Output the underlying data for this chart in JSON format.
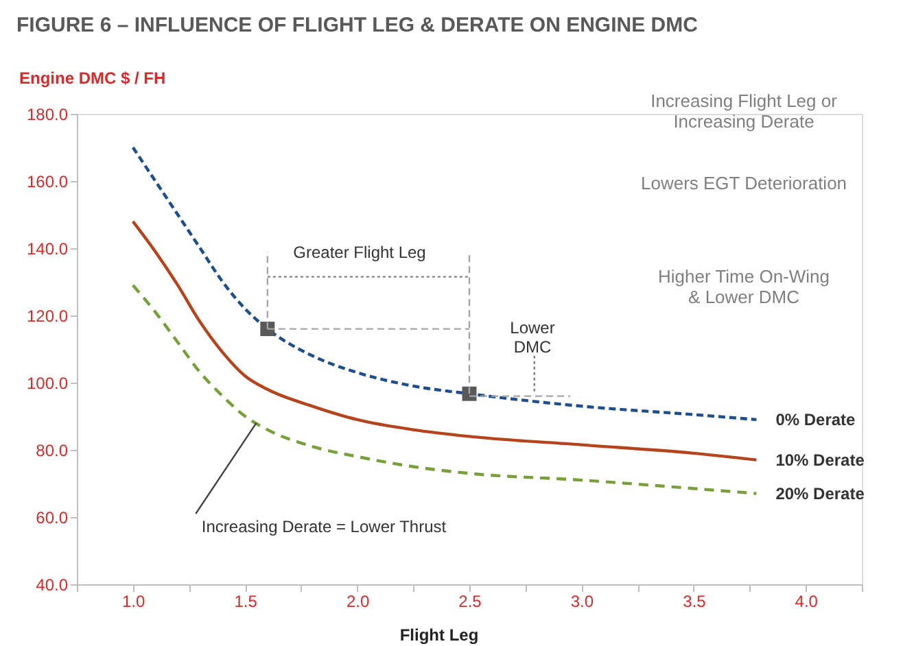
{
  "chart_data": {
    "type": "line",
    "title": "FIGURE 6 – INFLUENCE OF FLIGHT LEG & DERATE ON ENGINE DMC",
    "xlabel": "Flight Leg",
    "ylabel": "Engine  DMC $ / FH",
    "xlim": [
      0.75,
      4.25
    ],
    "xticks": [
      {
        "value": 0.75,
        "label": null
      },
      {
        "value": 1,
        "label": "1.0"
      },
      {
        "value": 1.25,
        "label": null
      },
      {
        "value": 1.5,
        "label": "1.5"
      },
      {
        "value": 1.75,
        "label": null
      },
      {
        "value": 2,
        "label": "2.0"
      },
      {
        "value": 2.25,
        "label": null
      },
      {
        "value": 2.5,
        "label": "2.5"
      },
      {
        "value": 2.75,
        "label": null
      },
      {
        "value": 3,
        "label": "3.0"
      },
      {
        "value": 3.25,
        "label": null
      },
      {
        "value": 3.5,
        "label": "3.5"
      },
      {
        "value": 3.75,
        "label": null
      },
      {
        "value": 4,
        "label": "4.0"
      },
      {
        "value": 4.25,
        "label": null
      }
    ],
    "ylim": [
      40,
      180
    ],
    "yticks": [
      {
        "value": 40,
        "label": "40.0"
      },
      {
        "value": 60,
        "label": "60.0"
      },
      {
        "value": 80,
        "label": "80.0"
      },
      {
        "value": 100,
        "label": "100.0"
      },
      {
        "value": 120,
        "label": "120.0"
      },
      {
        "value": 140,
        "label": "140.0"
      },
      {
        "value": 160,
        "label": "160.0"
      },
      {
        "value": 180,
        "label": "180.0"
      }
    ],
    "grid": false,
    "series": [
      {
        "name": "0% Derate",
        "color": "#1f4e8c",
        "line_style": "dashed",
        "x": [
          1.0,
          1.1,
          1.2,
          1.3,
          1.4,
          1.5,
          1.6,
          1.8,
          2.0,
          2.25,
          2.5,
          3.0,
          3.5,
          3.78
        ],
        "values": [
          170,
          160,
          150,
          140,
          130,
          122,
          116,
          108,
          103,
          99,
          96.7,
          93,
          90.5,
          89
        ]
      },
      {
        "name": "10% Derate",
        "color": "#b5441c",
        "line_style": "solid",
        "x": [
          1.0,
          1.1,
          1.2,
          1.3,
          1.4,
          1.5,
          1.6,
          1.8,
          2.0,
          2.25,
          2.5,
          3.0,
          3.5,
          3.78
        ],
        "values": [
          148,
          139,
          129,
          118,
          109,
          102,
          98,
          93,
          89,
          86,
          84,
          81.5,
          79,
          77
        ]
      },
      {
        "name": "20% Derate",
        "color": "#77a03a",
        "line_style": "dashed",
        "x": [
          1.0,
          1.1,
          1.2,
          1.3,
          1.4,
          1.5,
          1.6,
          1.8,
          2.0,
          2.25,
          2.5,
          3.0,
          3.5,
          3.78
        ],
        "values": [
          129,
          121,
          112,
          103,
          96,
          90,
          86,
          81,
          78,
          75,
          73,
          71,
          68.5,
          67
        ]
      },
      {
        "type": "scatter",
        "marker": "square",
        "color": "#595959",
        "x": [
          1.6,
          2.5
        ],
        "values": [
          116,
          96.7
        ]
      },
      {
        "color": "#a6a6a6",
        "line_style": "dashed",
        "x": [
          1.6,
          1.6
        ],
        "values": [
          116,
          139
        ]
      },
      {
        "color": "#a6a6a6",
        "line_style": "dashed",
        "x": [
          2.5,
          2.5
        ],
        "values": [
          96.7,
          139
        ]
      },
      {
        "color": "#a6a6a6",
        "line_style": "dashed",
        "x": [
          1.6,
          2.5
        ],
        "values": [
          116,
          116
        ]
      },
      {
        "color": "#a6a6a6",
        "line_style": "dashed",
        "x": [
          2.5,
          2.95
        ],
        "values": [
          96,
          96
        ]
      },
      {
        "color": "#808080",
        "line_style": "dotted",
        "x": [
          1.6,
          2.5
        ],
        "values": [
          131.5,
          131.5
        ]
      },
      {
        "color": "#808080",
        "line_style": "dotted",
        "x": [
          2.79,
          2.79
        ],
        "values": [
          108,
          97
        ]
      },
      {
        "color": "#404040",
        "line_style": "solid",
        "x": [
          1.28,
          1.55
        ],
        "values": [
          61,
          88
        ]
      }
    ],
    "annotations": [
      "Greater Flight Leg",
      "Lower\nDMC",
      "Increasing Derate = Lower Thrust",
      "Increasing Flight Leg or\nIncreasing Derate",
      "Lowers EGT Deterioration",
      "Higher Time On-Wing\n& Lower DMC"
    ]
  }
}
